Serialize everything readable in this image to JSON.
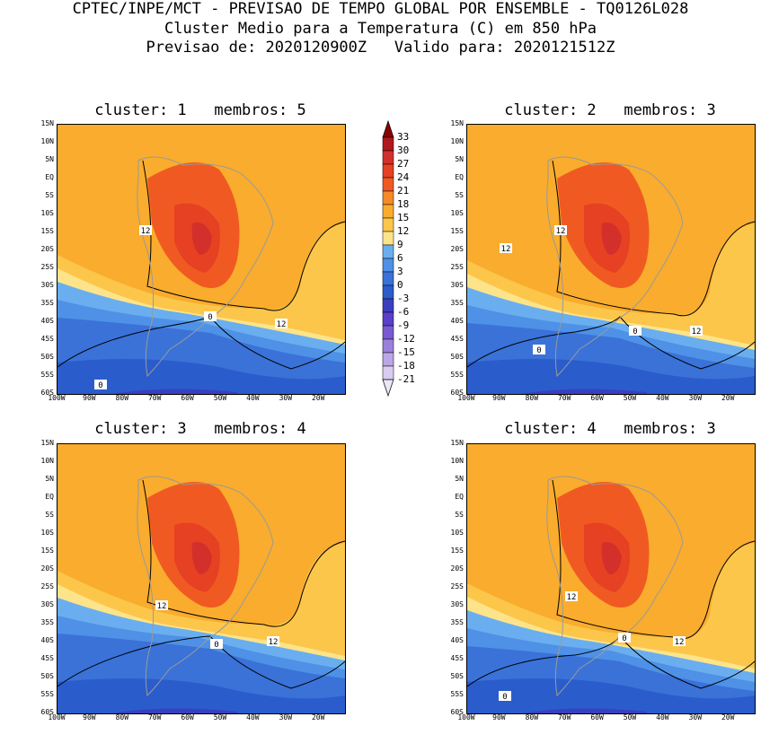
{
  "header": {
    "line1": "CPTEC/INPE/MCT - PREVISAO DE TEMPO GLOBAL POR ENSEMBLE - TQ0126L028",
    "line2": "Cluster Medio para a Temperatura (C) em 850 hPa",
    "line3": "Previsao de: 2020120900Z   Valido para: 2020121512Z"
  },
  "panels": [
    {
      "title": "cluster: 1   membros: 5",
      "contour_labels": [
        "12",
        "12",
        "0",
        "0"
      ]
    },
    {
      "title": "cluster: 2   membros: 3",
      "contour_labels": [
        "12",
        "12",
        "12",
        "0",
        "0"
      ]
    },
    {
      "title": "cluster: 3   membros: 4",
      "contour_labels": [
        "12",
        "12",
        "0"
      ]
    },
    {
      "title": "cluster: 4   membros: 3",
      "contour_labels": [
        "12",
        "12",
        "0",
        "0"
      ]
    }
  ],
  "lat_labels": [
    "15N",
    "10N",
    "5N",
    "EQ",
    "5S",
    "10S",
    "15S",
    "20S",
    "25S",
    "30S",
    "35S",
    "40S",
    "45S",
    "50S",
    "55S",
    "60S"
  ],
  "lon_labels": [
    "100W",
    "90W",
    "80W",
    "70W",
    "60W",
    "50W",
    "40W",
    "30W",
    "20W"
  ],
  "colorbar": {
    "levels": [
      "33",
      "30",
      "27",
      "24",
      "21",
      "18",
      "15",
      "12",
      "9",
      "6",
      "3",
      "0",
      "-3",
      "-6",
      "-9",
      "-12",
      "-15",
      "-18",
      "-21"
    ],
    "colors": [
      "#8b0000",
      "#b0181e",
      "#d3302b",
      "#e64123",
      "#f05a22",
      "#f58a28",
      "#f9ac2d",
      "#fcc64b",
      "#fde48a",
      "#6aaef0",
      "#4e91e6",
      "#3a72d8",
      "#2b5ccc",
      "#3a3fc0",
      "#5a3fc8",
      "#7a5ad2",
      "#9a80dc",
      "#bba6e6",
      "#d9ccf0",
      "#ece6f8"
    ]
  }
}
